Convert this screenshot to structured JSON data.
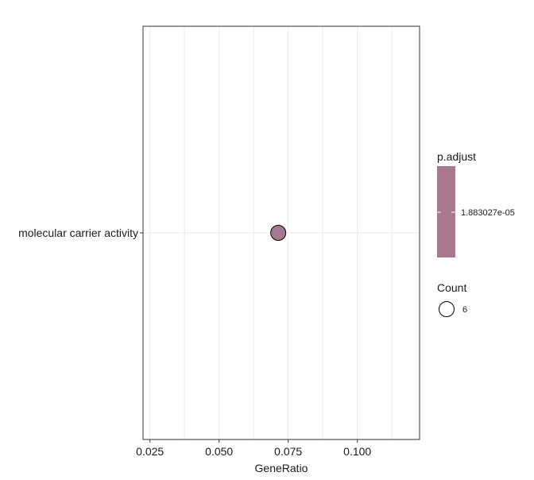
{
  "chart_data": {
    "type": "scatter",
    "title": "",
    "xlabel": "GeneRatio",
    "ylabel": "",
    "xlim": [
      0.0225,
      0.1225
    ],
    "x_ticks": [
      0.025,
      0.05,
      0.075,
      0.1
    ],
    "x_tick_labels": [
      "0.025",
      "0.050",
      "0.075",
      "0.100"
    ],
    "categories": [
      "molecular carrier activity"
    ],
    "points": [
      {
        "category": "molecular carrier activity",
        "x": 0.0714,
        "count": 6,
        "p_adjust": 1.883027e-05
      }
    ],
    "grid": true,
    "legend_position": "right",
    "colors": {
      "point_fill": "#a8788e",
      "point_stroke": "#000000",
      "grid": "#ebebeb",
      "panel_border": "#333333"
    },
    "legend": {
      "color_title": "p.adjust",
      "color_label": "1.883027e-05",
      "size_title": "Count",
      "size_label": "6"
    }
  }
}
